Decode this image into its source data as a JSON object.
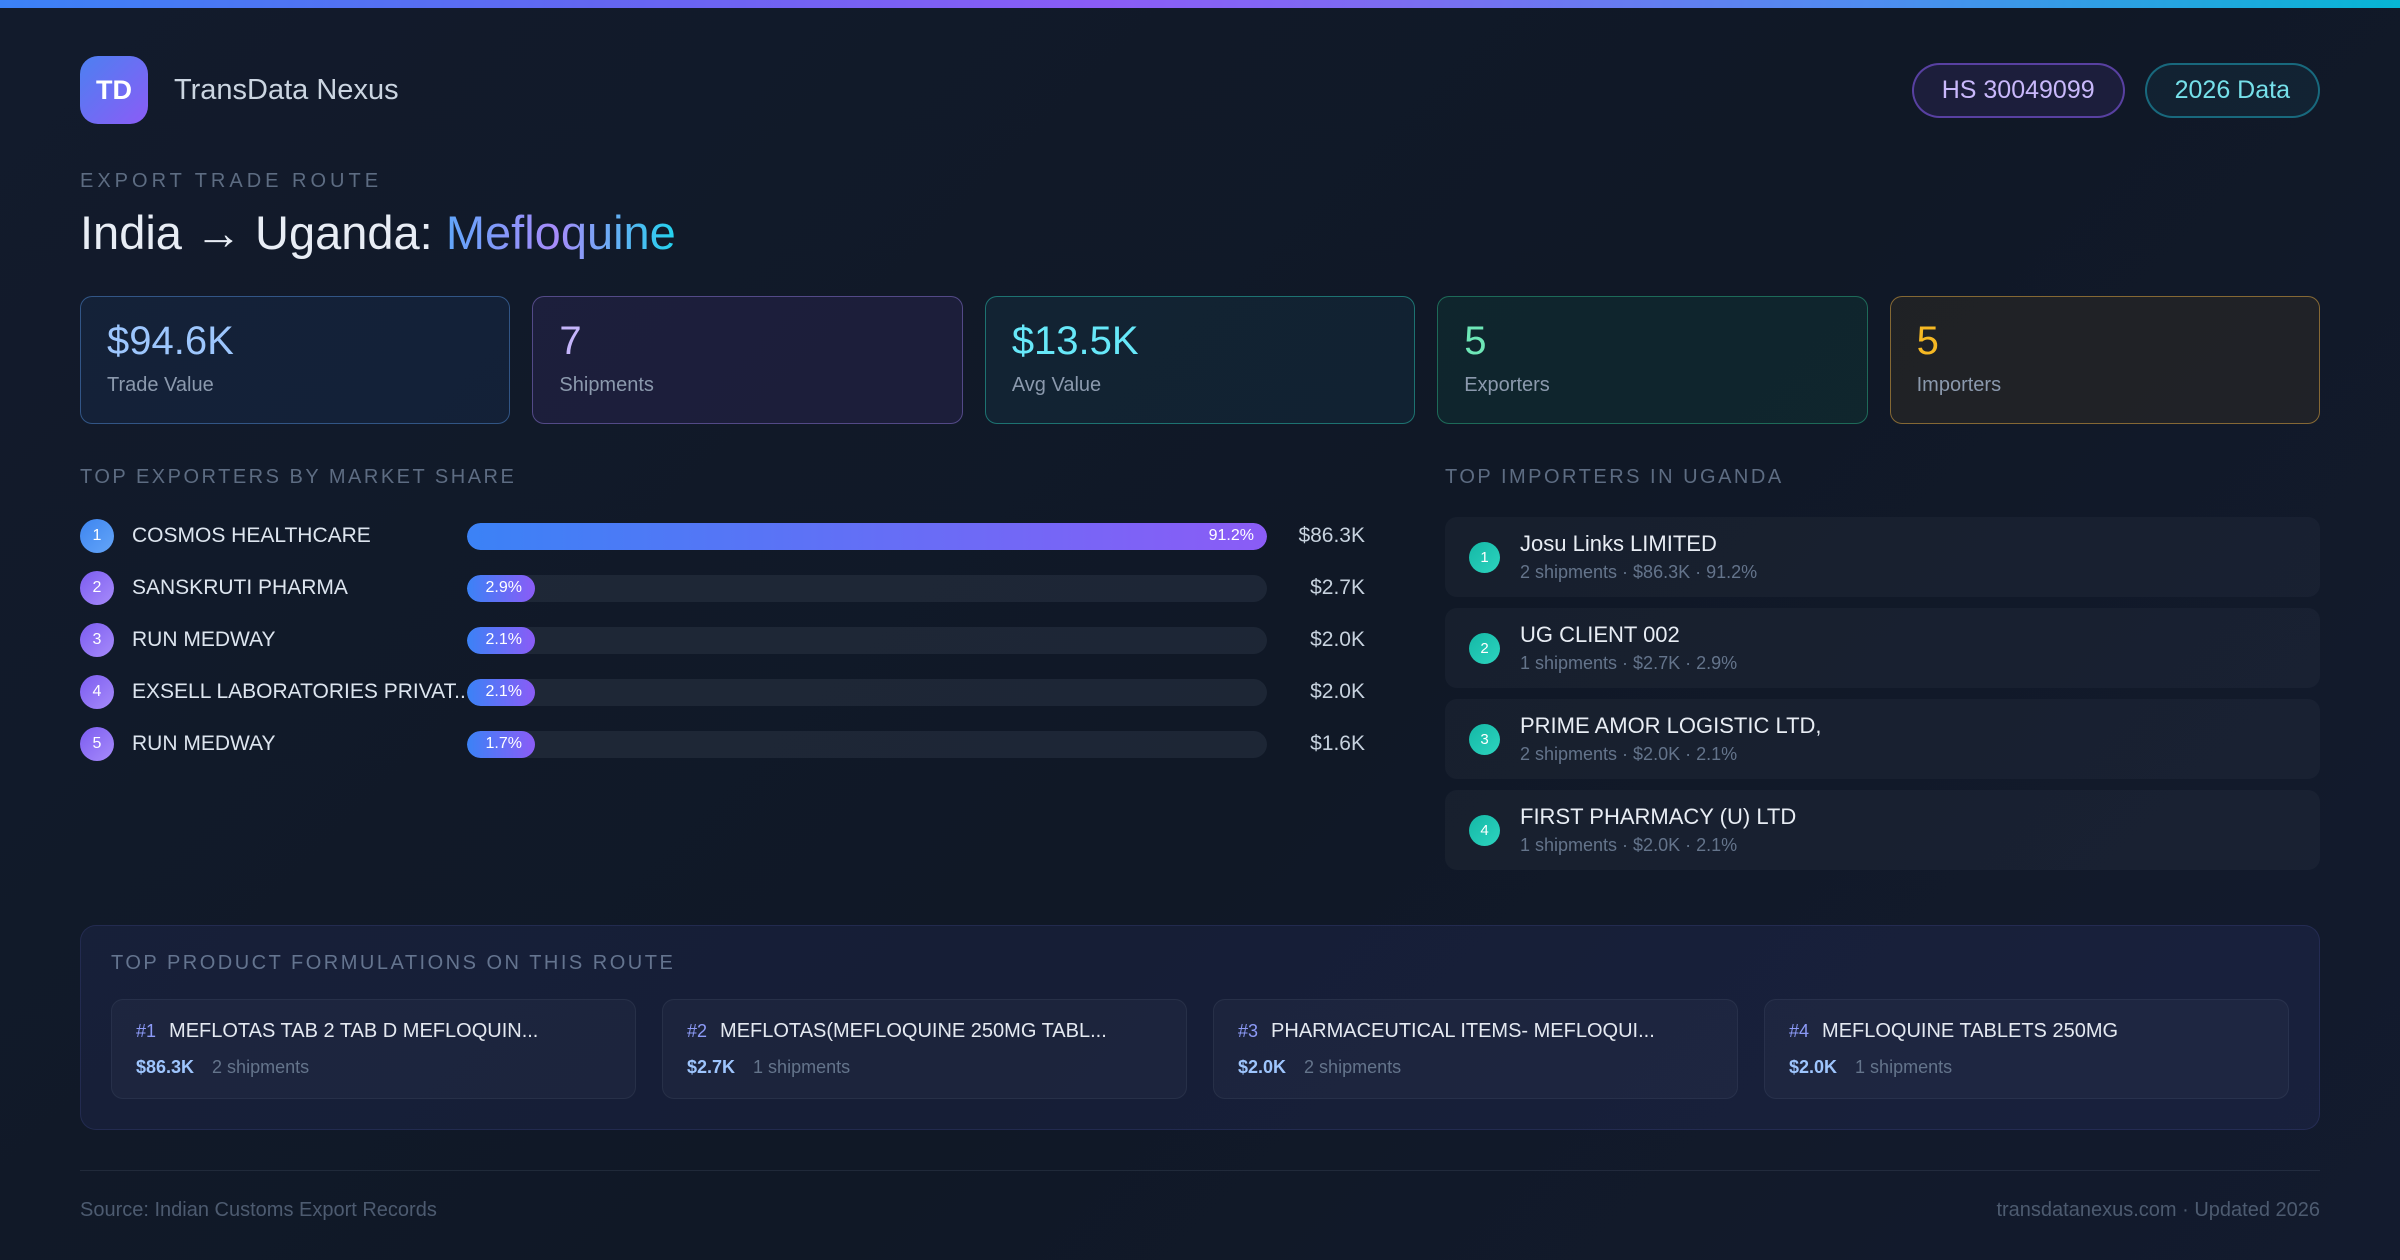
{
  "header": {
    "logo_text": "TD",
    "brand": "TransData Nexus",
    "hs_badge": "HS 30049099",
    "year_badge": "2026 Data",
    "eyebrow": "EXPORT TRADE ROUTE",
    "route_prefix": "India → Uganda:",
    "product": "Mefloquine"
  },
  "accent_colors": {
    "blue": "#3b82f6",
    "purple": "#8b5cf6",
    "cyan": "#22d3ee",
    "green": "#34d399",
    "amber": "#f5b823",
    "teal_badge": "#2dd4bf"
  },
  "stats": {
    "cards": [
      {
        "value": "$94.6K",
        "label": "Trade Value",
        "accent": "#9dc6fd"
      },
      {
        "value": "7",
        "label": "Shipments",
        "accent": "#c5b5fb"
      },
      {
        "value": "$13.5K",
        "label": "Avg Value",
        "accent": "#67e8f9"
      },
      {
        "value": "5",
        "label": "Exporters",
        "accent": "#6ee7b7"
      },
      {
        "value": "5",
        "label": "Importers",
        "accent": "#f5b823"
      }
    ]
  },
  "exporters": {
    "title": "TOP EXPORTERS BY MARKET SHARE",
    "rows": [
      {
        "rank": "1",
        "name": "COSMOS HEALTHCARE",
        "share_pct": 91.2,
        "share_label": "91.2%",
        "value": "$86.3K"
      },
      {
        "rank": "2",
        "name": "SANSKRUTI PHARMA",
        "share_pct": 2.9,
        "share_label": "2.9%",
        "value": "$2.7K"
      },
      {
        "rank": "3",
        "name": "RUN MEDWAY",
        "share_pct": 2.1,
        "share_label": "2.1%",
        "value": "$2.0K"
      },
      {
        "rank": "4",
        "name": "EXSELL LABORATORIES PRIVAT...",
        "share_pct": 2.1,
        "share_label": "2.1%",
        "value": "$2.0K"
      },
      {
        "rank": "5",
        "name": "RUN MEDWAY",
        "share_pct": 1.7,
        "share_label": "1.7%",
        "value": "$1.6K"
      }
    ]
  },
  "importers": {
    "title": "TOP IMPORTERS IN UGANDA",
    "rows": [
      {
        "rank": "1",
        "name": "Josu Links LIMITED",
        "detail": "2 shipments · $86.3K · 91.2%"
      },
      {
        "rank": "2",
        "name": "UG CLIENT 002",
        "detail": "1 shipments · $2.7K · 2.9%"
      },
      {
        "rank": "3",
        "name": "PRIME AMOR LOGISTIC LTD,",
        "detail": "2 shipments · $2.0K · 2.1%"
      },
      {
        "rank": "4",
        "name": "FIRST PHARMACY (U) LTD",
        "detail": "1 shipments · $2.0K · 2.1%"
      }
    ]
  },
  "formulations": {
    "title": "TOP PRODUCT FORMULATIONS ON THIS ROUTE",
    "cards": [
      {
        "rank": "#1",
        "name": "MEFLOTAS TAB 2 TAB D MEFLOQUIN...",
        "value": "$86.3K",
        "shipments": "2 shipments"
      },
      {
        "rank": "#2",
        "name": "MEFLOTAS(MEFLOQUINE 250MG TABL...",
        "value": "$2.7K",
        "shipments": "1 shipments"
      },
      {
        "rank": "#3",
        "name": "PHARMACEUTICAL ITEMS- MEFLOQUI...",
        "value": "$2.0K",
        "shipments": "2 shipments"
      },
      {
        "rank": "#4",
        "name": "MEFLOQUINE TABLETS 250MG",
        "value": "$2.0K",
        "shipments": "1 shipments"
      }
    ]
  },
  "footer": {
    "source": "Source: Indian Customs Export Records",
    "site": "transdatanexus.com · Updated 2026"
  }
}
